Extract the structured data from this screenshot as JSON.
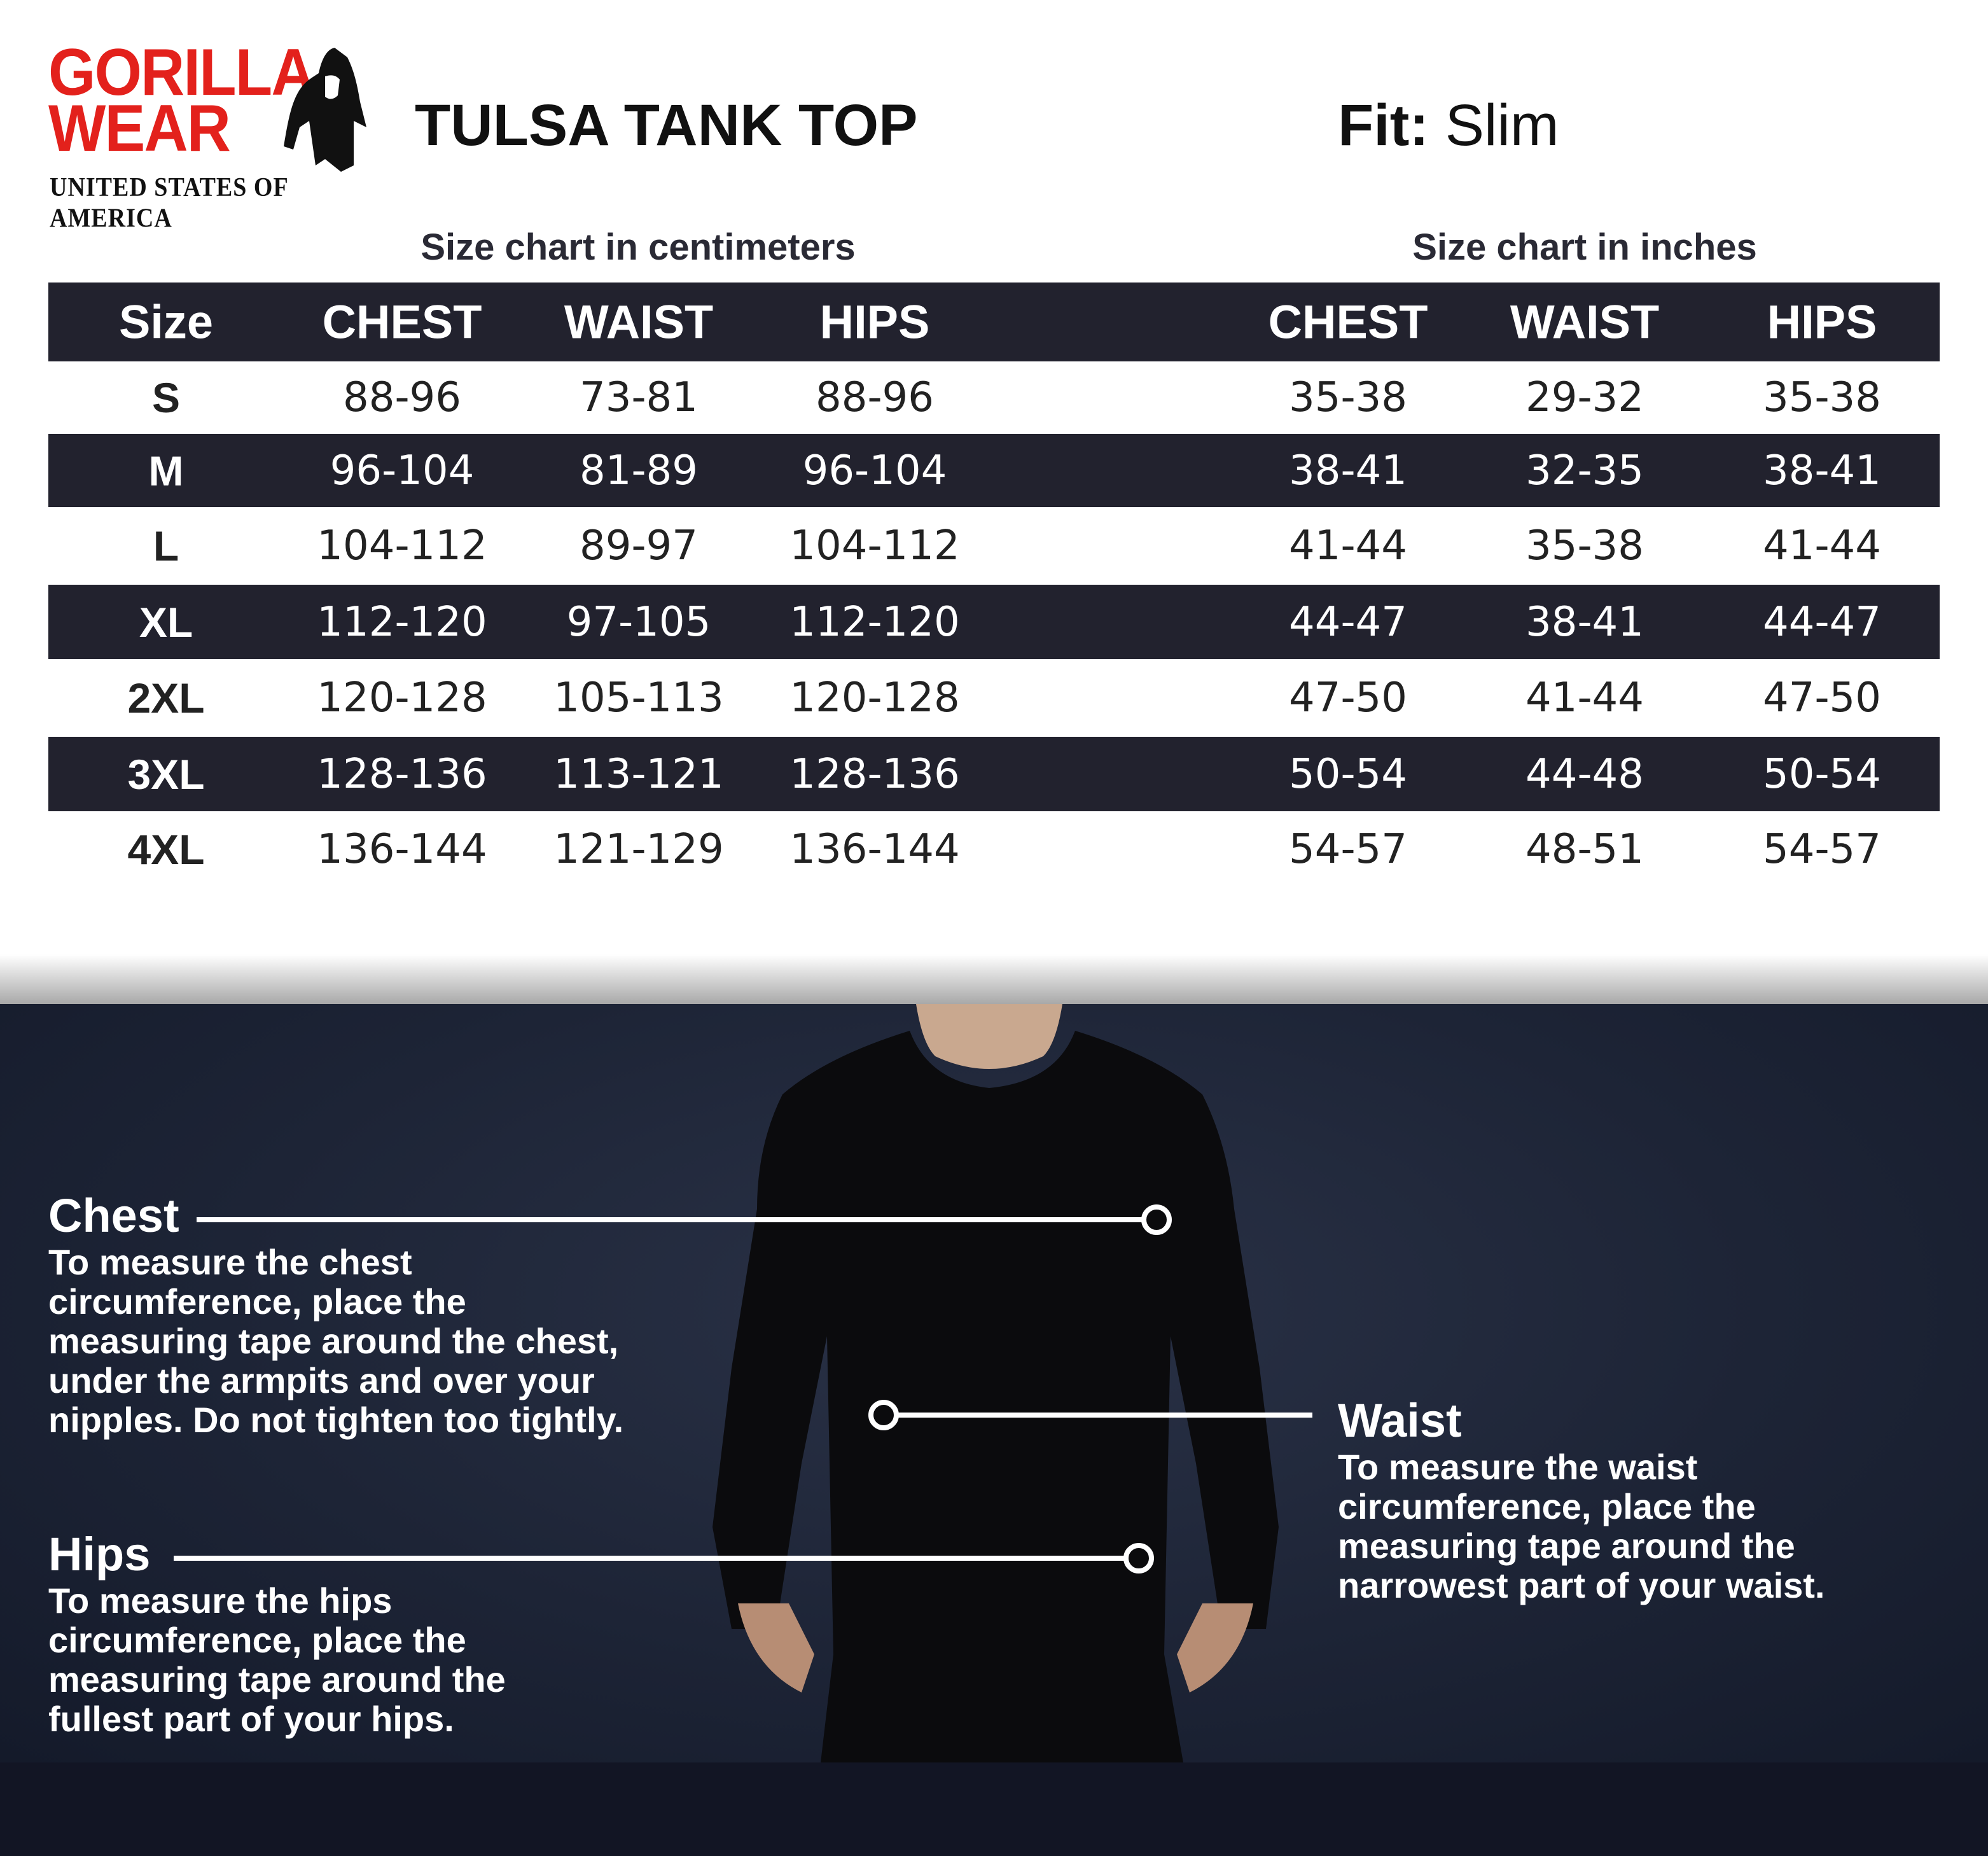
{
  "brand": {
    "logo_line1": "GORILLA",
    "logo_line2": "WEAR",
    "tagline": "UNITED STATES OF AMERICA",
    "logo_color": "#e3211c"
  },
  "product": {
    "title": "TULSA TANK TOP",
    "fit_label": "Fit:",
    "fit_value": "Slim"
  },
  "tables": {
    "cm_caption": "Size chart in centimeters",
    "in_caption": "Size chart in inches",
    "headers": [
      "Size",
      "CHEST",
      "WAIST",
      "HIPS",
      "CHEST",
      "WAIST",
      "HIPS"
    ],
    "rows": [
      [
        "S",
        "88-96",
        "73-81",
        "88-96",
        "35-38",
        "29-32",
        "35-38"
      ],
      [
        "M",
        "96-104",
        "81-89",
        "96-104",
        "38-41",
        "32-35",
        "38-41"
      ],
      [
        "L",
        "104-112",
        "89-97",
        "104-112",
        "41-44",
        "35-38",
        "41-44"
      ],
      [
        "XL",
        "112-120",
        "97-105",
        "112-120",
        "44-47",
        "38-41",
        "44-47"
      ],
      [
        "2XL",
        "120-128",
        "105-113",
        "120-128",
        "47-50",
        "41-44",
        "47-50"
      ],
      [
        "3XL",
        "128-136",
        "113-121",
        "128-136",
        "50-54",
        "44-48",
        "50-54"
      ],
      [
        "4XL",
        "136-144",
        "121-129",
        "136-144",
        "54-57",
        "48-51",
        "54-57"
      ]
    ],
    "header_color": "#22222e"
  },
  "measure": {
    "chest": {
      "title": "Chest",
      "lines": [
        "To measure the chest",
        "circumference, place the",
        "measuring tape around the chest,",
        "under the armpits and over your",
        "nipples. Do not tighten too tightly."
      ]
    },
    "waist": {
      "title": "Waist",
      "lines": [
        "To measure the waist",
        "circumference, place the",
        "measuring tape around the",
        "narrowest part of your waist."
      ]
    },
    "hips": {
      "title": "Hips",
      "lines": [
        "To measure the hips",
        "circumference, place the",
        "measuring tape around the",
        "fullest part of your hips."
      ]
    }
  }
}
